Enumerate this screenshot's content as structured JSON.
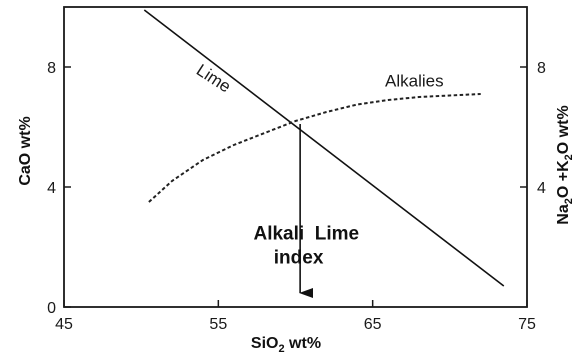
{
  "chart_data": {
    "type": "line",
    "x_axis": {
      "label": "SiO2 wt%",
      "label_main": "SiO",
      "label_sub": "2",
      "label_rest": " wt%",
      "range": [
        45,
        75
      ],
      "ticks": [
        45,
        55,
        65,
        75
      ],
      "tick_labels": [
        "45",
        "55",
        "65",
        "75"
      ]
    },
    "y_axis_left": {
      "label": "CaO wt%",
      "range": [
        0,
        10
      ],
      "ticks": [
        0,
        4,
        8
      ],
      "tick_labels": [
        "0",
        "4",
        "8"
      ]
    },
    "y_axis_right": {
      "label": "Na2O +K2O wt%",
      "parts": [
        {
          "text": "Na",
          "sub": false
        },
        {
          "text": "2",
          "sub": true
        },
        {
          "text": "O +K",
          "sub": false
        },
        {
          "text": "2",
          "sub": true
        },
        {
          "text": "O wt%",
          "sub": false
        }
      ],
      "range": [
        0,
        10
      ],
      "ticks": [
        4,
        8
      ],
      "tick_labels": [
        "4",
        "8"
      ]
    },
    "series": [
      {
        "name": "Lime",
        "style": "solid",
        "x": [
          50.2,
          73.5
        ],
        "y": [
          9.9,
          0.7
        ]
      },
      {
        "name": "Alkalies",
        "style": "dashed",
        "x": [
          50.5,
          52,
          54,
          56,
          58,
          60,
          62,
          64,
          66,
          68,
          70,
          72
        ],
        "y": [
          3.5,
          4.2,
          4.9,
          5.4,
          5.8,
          6.2,
          6.5,
          6.75,
          6.9,
          7.0,
          7.05,
          7.1
        ]
      }
    ],
    "annotation": {
      "lines": [
        "Alkali  Lime",
        "index"
      ],
      "arrow_from": {
        "x": 60.3,
        "y": 6.1
      },
      "arrow_to": {
        "x": 60.3,
        "y": 0.4
      }
    },
    "grid": false
  },
  "colors": {
    "axis": "#1a1a1a",
    "lime_line": "#111111",
    "alkalies_line": "#222222",
    "arrow": "#111111"
  }
}
